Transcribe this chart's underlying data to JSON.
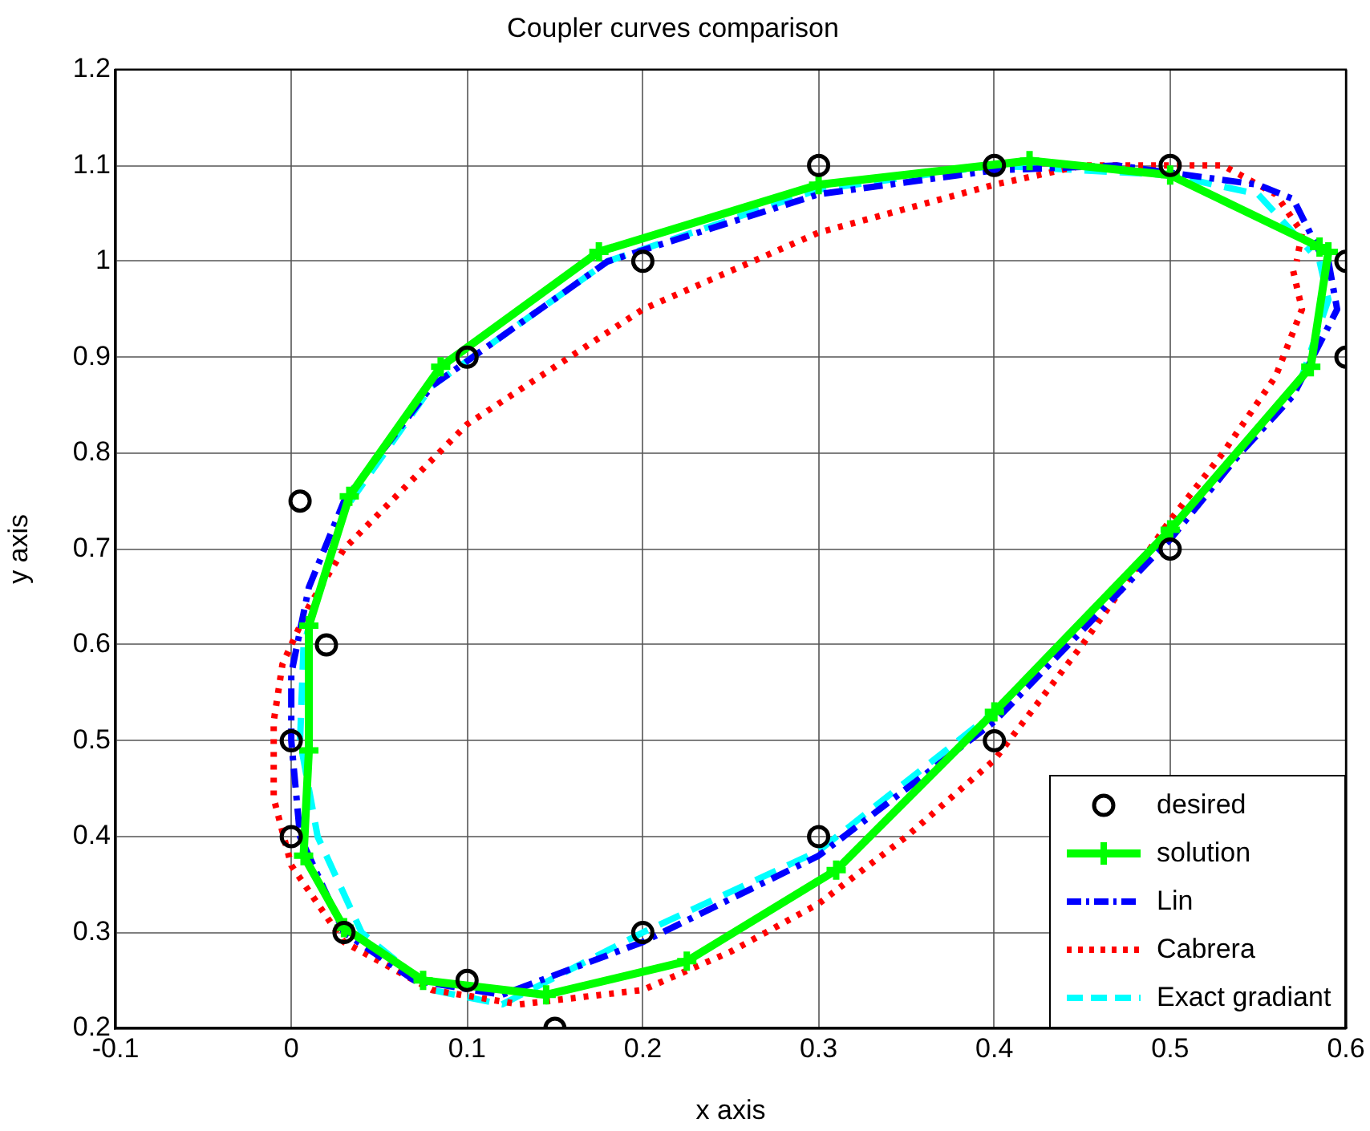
{
  "chart_data": {
    "type": "line",
    "title": "Coupler curves comparison",
    "xlabel": "x axis",
    "ylabel": "y axis",
    "xlim": [
      -0.1,
      0.6
    ],
    "xticks": [
      -0.1,
      0,
      0.1,
      0.2,
      0.3,
      0.4,
      0.5,
      0.6
    ],
    "ylim": [
      0.2,
      1.2
    ],
    "yticks": [
      0.2,
      0.3,
      0.4,
      0.5,
      0.6,
      0.7,
      0.8,
      0.9,
      1,
      1.1,
      1.2
    ],
    "grid": true,
    "legend": "bottom right",
    "series": [
      {
        "name": "desired",
        "type": "scatter",
        "color": "#000000",
        "marker": "circle",
        "x": [
          0.5,
          0.4,
          0.3,
          0.2,
          0.1,
          0.005,
          0.02,
          0,
          0,
          0.03,
          0.1,
          0.15,
          0.2,
          0.3,
          0.4,
          0.5,
          0.6,
          0.6
        ],
        "values": [
          1.1,
          1.1,
          1.1,
          1,
          0.9,
          0.75,
          0.6,
          0.5,
          0.4,
          0.3,
          0.25,
          0.2,
          0.3,
          0.4,
          0.5,
          0.7,
          0.9,
          1
        ]
      },
      {
        "name": "solution",
        "type": "line",
        "color": "#00ff00",
        "marker": "cross",
        "line_style": "solid",
        "x": [
          0.59,
          0.58,
          0.5,
          0.4,
          0.31,
          0.225,
          0.145,
          0.075,
          0.03,
          0.007,
          0.01,
          0.01,
          0.033,
          0.085,
          0.175,
          0.3,
          0.42,
          0.5,
          0.585
        ],
        "values": [
          1.01,
          0.89,
          0.72,
          0.53,
          0.365,
          0.27,
          0.235,
          0.25,
          0.305,
          0.38,
          0.49,
          0.62,
          0.755,
          0.89,
          1.01,
          1.08,
          1.105,
          1.09,
          1.015
        ]
      },
      {
        "name": "Lin",
        "type": "line",
        "color": "#0000ff",
        "marker": "none",
        "line_style": "dashdot",
        "x": [
          0.59,
          0.595,
          0.57,
          0.54,
          0.5,
          0.4,
          0.3,
          0.2,
          0.12,
          0.07,
          0.03,
          0.005,
          0,
          0,
          0.01,
          0.03,
          0.08,
          0.18,
          0.3,
          0.4,
          0.47,
          0.55,
          0.57,
          0.585
        ],
        "values": [
          1,
          0.95,
          0.86,
          0.8,
          0.71,
          0.52,
          0.38,
          0.29,
          0.235,
          0.25,
          0.3,
          0.4,
          0.5,
          0.57,
          0.66,
          0.75,
          0.87,
          1,
          1.07,
          1.095,
          1.1,
          1.08,
          1.065,
          1.01
        ]
      },
      {
        "name": "Cabrera",
        "type": "line",
        "color": "#ff0000",
        "marker": "none",
        "line_style": "dotted",
        "x": [
          0.57,
          0.575,
          0.56,
          0.53,
          0.5,
          0.45,
          0.4,
          0.35,
          0.3,
          0.25,
          0.2,
          0.13,
          0.08,
          0.03,
          0,
          -0.01,
          -0.01,
          -0.005,
          0.01,
          0.03,
          0.1,
          0.2,
          0.3,
          0.4,
          0.45,
          0.53,
          0.56,
          0.575,
          0.572
        ],
        "values": [
          0.99,
          0.95,
          0.88,
          0.8,
          0.73,
          0.6,
          0.48,
          0.4,
          0.33,
          0.28,
          0.24,
          0.225,
          0.24,
          0.29,
          0.37,
          0.44,
          0.52,
          0.58,
          0.64,
          0.7,
          0.83,
          0.95,
          1.03,
          1.08,
          1.1,
          1.1,
          1.07,
          1.03,
          1
        ]
      },
      {
        "name": "Exact gradiant",
        "type": "line",
        "color": "#00ffff",
        "marker": "none",
        "line_style": "dashed",
        "x": [
          0.585,
          0.59,
          0.575,
          0.5,
          0.4,
          0.3,
          0.2,
          0.12,
          0.08,
          0.04,
          0.015,
          0.005,
          0.007,
          0.03,
          0.08,
          0.18,
          0.3,
          0.4,
          0.5,
          0.55,
          0.58
        ],
        "values": [
          1,
          0.96,
          0.88,
          0.72,
          0.53,
          0.385,
          0.3,
          0.225,
          0.24,
          0.3,
          0.4,
          0.5,
          0.6,
          0.74,
          0.87,
          1,
          1.075,
          1.1,
          1.09,
          1.07,
          1.01
        ]
      }
    ]
  }
}
